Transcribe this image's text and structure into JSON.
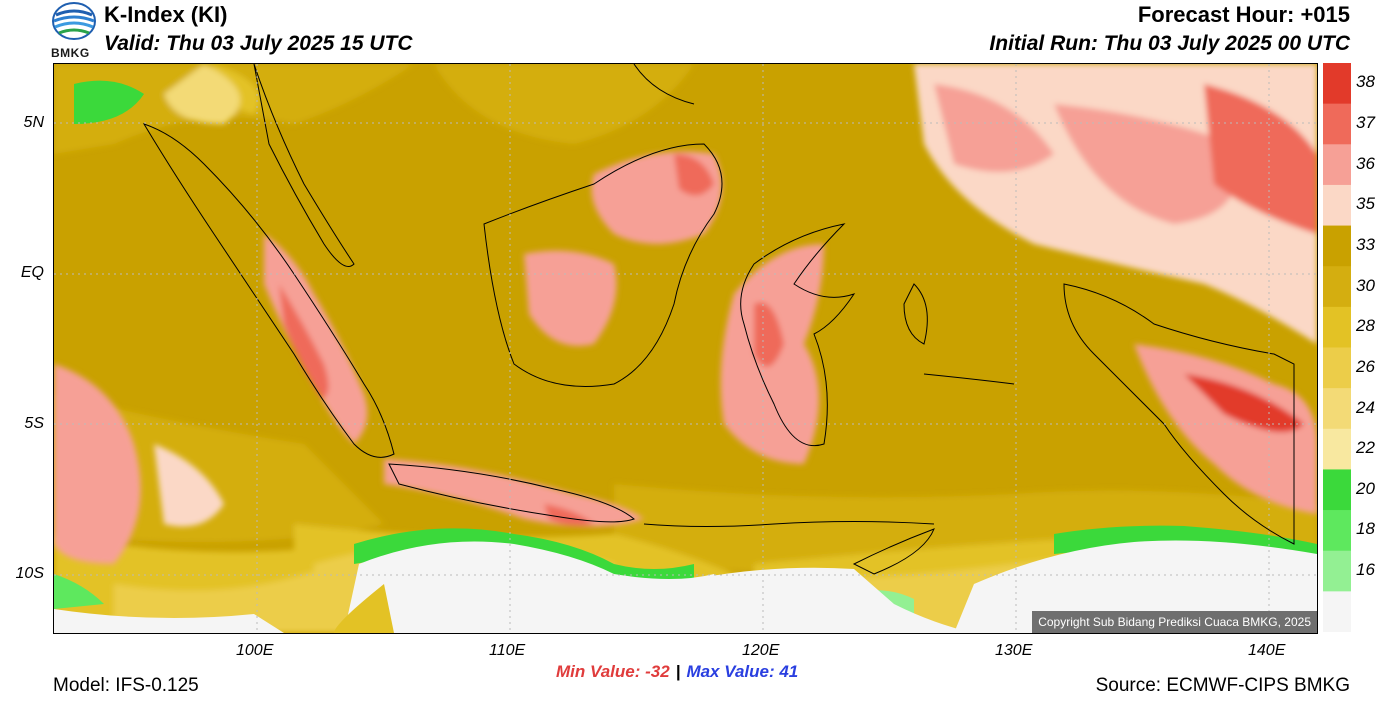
{
  "header": {
    "title": "K-Index (KI)",
    "valid": "Valid: Thu 03 July 2025 15 UTC",
    "forecast_hour": "Forecast Hour: +015",
    "initial_run": "Initial Run: Thu 03 July 2025 00 UTC",
    "logo_text": "BMKG"
  },
  "map": {
    "lat_labels": [
      "5N",
      "EQ",
      "5S",
      "10S"
    ],
    "lon_labels": [
      "100E",
      "110E",
      "120E",
      "130E",
      "140E"
    ],
    "copyright": "Copyright Sub Bidang Prediksi Cuaca BMKG, 2025"
  },
  "stats": {
    "min": "Min Value: -32",
    "separator": "|",
    "max": "Max Value:  41"
  },
  "footer": {
    "model": "Model: IFS-0.125",
    "source": "Source: ECMWF-CIPS BMKG"
  },
  "colorbar": {
    "labels": [
      "38",
      "37",
      "36",
      "35",
      "33",
      "30",
      "28",
      "26",
      "24",
      "22",
      "20",
      "18",
      "16"
    ],
    "colors": [
      "#e23a2a",
      "#ef6a5a",
      "#f6a096",
      "#fbd8c6",
      "#c9a100",
      "#d4ae10",
      "#e3c225",
      "#eccd49",
      "#f3da76",
      "#f8e8a0",
      "#3bd93b",
      "#5ee85e",
      "#93f093",
      "#f5f5f5"
    ]
  }
}
